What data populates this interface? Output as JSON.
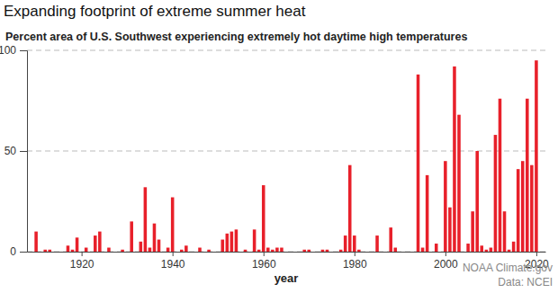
{
  "chart_data": {
    "type": "bar",
    "title": "Expanding footprint of extreme summer heat",
    "subtitle": "Percent area of U.S. Southwest experiencing extremely hot daytime high temperatures",
    "xlabel": "year",
    "annotations": [
      "NOAA Climate.gov",
      "Data: NCEI"
    ],
    "x": [
      1910,
      1912,
      1913,
      1917,
      1918,
      1919,
      1921,
      1923,
      1924,
      1926,
      1929,
      1931,
      1933,
      1934,
      1935,
      1936,
      1937,
      1939,
      1940,
      1942,
      1943,
      1946,
      1948,
      1951,
      1952,
      1953,
      1954,
      1956,
      1958,
      1959,
      1960,
      1961,
      1962,
      1963,
      1964,
      1969,
      1970,
      1973,
      1974,
      1977,
      1978,
      1979,
      1980,
      1981,
      1985,
      1988,
      1989,
      1994,
      1995,
      1996,
      1998,
      2000,
      2001,
      2002,
      2003,
      2005,
      2006,
      2007,
      2008,
      2009,
      2010,
      2011,
      2012,
      2013,
      2014,
      2015,
      2016,
      2017,
      2018,
      2019,
      2020
    ],
    "values": [
      10,
      1,
      1,
      3,
      1,
      7,
      2,
      8,
      10,
      2,
      1,
      15,
      5,
      32,
      2,
      14,
      6,
      2,
      27,
      1,
      3,
      2,
      1,
      6,
      9,
      10,
      11,
      1,
      11,
      1,
      33,
      2,
      1,
      2,
      2,
      1,
      1,
      1,
      1,
      1,
      8,
      43,
      8,
      1,
      8,
      12,
      2,
      88,
      2,
      38,
      4,
      45,
      22,
      92,
      68,
      4,
      20,
      50,
      3,
      1,
      2,
      58,
      76,
      20,
      1,
      5,
      41,
      45,
      76,
      43,
      95
    ],
    "color": "#e8202a",
    "xlim": [
      1908,
      2022
    ],
    "xticks": [
      1920,
      1940,
      1960,
      1980,
      2000,
      2020
    ],
    "ylim": [
      0,
      100
    ],
    "yticks": [
      0,
      50,
      100
    ],
    "grid": true
  }
}
